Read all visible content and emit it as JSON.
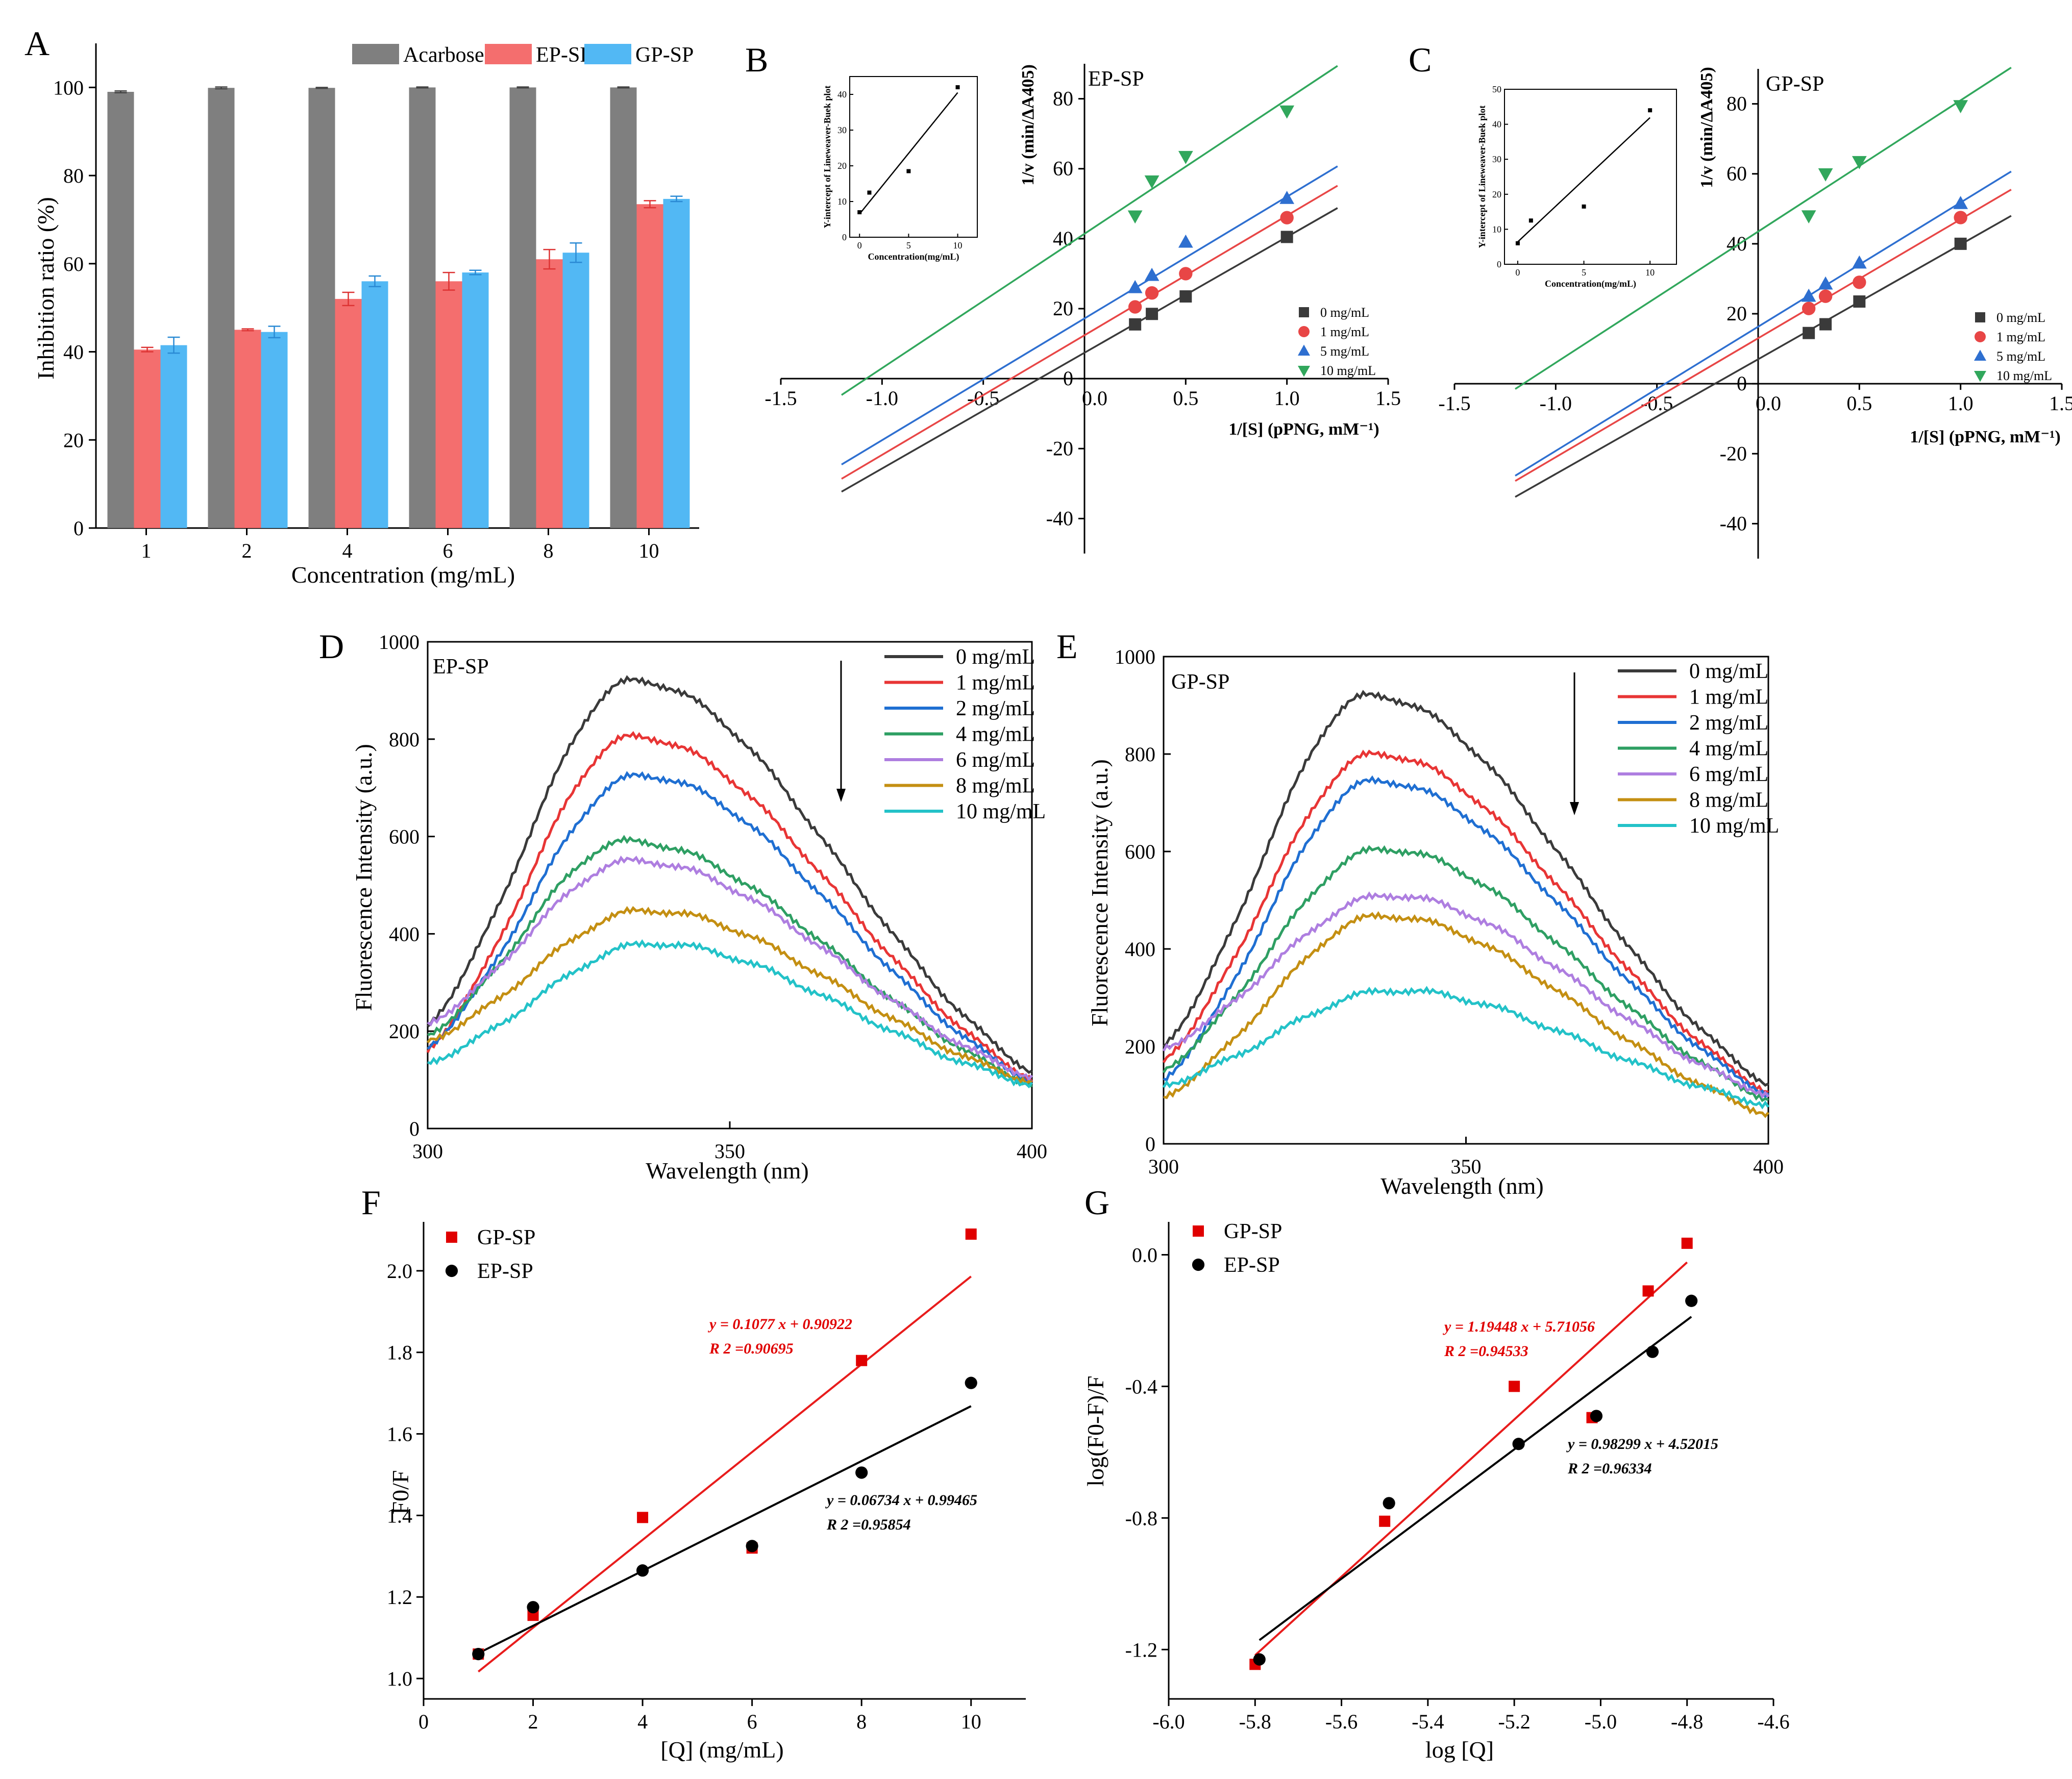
{
  "colors": {
    "acarbose": "#7f7f7f",
    "ep_sp": "#f46e6e",
    "gp_sp": "#52b8f4",
    "lb_0": "#3a3a3a",
    "lb_1": "#e84646",
    "lb_5": "#2e6fd0",
    "lb_10": "#31a75c",
    "fl": [
      "#3a3a3a",
      "#e83535",
      "#1f6fd2",
      "#2e9f63",
      "#ae7ee0",
      "#c48f12",
      "#23c2c8"
    ],
    "fit_gp": "#e81c1c",
    "fit_ep": "#000000"
  },
  "panels": {
    "A": {
      "letter": "A",
      "xlabel": "Concentration (mg/mL)",
      "ylabel": "Inhibition ratio (%)",
      "legend": [
        "Acarbose",
        "EP-SP",
        "GP-SP"
      ]
    },
    "B": {
      "letter": "B",
      "label": "EP-SP",
      "xlabel": "1/[S] (pPNG, mM⁻¹)",
      "ylabel": "1/v (min/ΔA405)",
      "legend": [
        "0 mg/mL",
        "1 mg/mL",
        "5 mg/mL",
        "10 mg/mL"
      ],
      "inset_ylabel": "Y-intercept of Lineweaver-Buek plot",
      "inset_xlabel": "Concentration(mg/mL)"
    },
    "C": {
      "letter": "C",
      "label": "GP-SP",
      "xlabel": "1/[S] (pPNG, mM⁻¹)",
      "ylabel": "1/v (min/ΔA405)",
      "legend": [
        "0 mg/mL",
        "1 mg/mL",
        "5 mg/mL",
        "10 mg/mL"
      ],
      "inset_ylabel": "Y-intercept of Lineweaver-Buek plot",
      "inset_xlabel": "Concentration(mg/mL)"
    },
    "D": {
      "letter": "D",
      "label": "EP-SP",
      "xlabel": "Wavelength (nm)",
      "ylabel": "Fluorescence Intensity (a.u.)",
      "legend": [
        "0 mg/mL",
        "1 mg/mL",
        "2 mg/mL",
        "4 mg/mL",
        "6 mg/mL",
        "8 mg/mL",
        "10 mg/mL"
      ]
    },
    "E": {
      "letter": "E",
      "label": "GP-SP",
      "xlabel": "Wavelength (nm)",
      "ylabel": "Fluorescence Intensity (a.u.)",
      "legend": [
        "0 mg/mL",
        "1 mg/mL",
        "2 mg/mL",
        "4 mg/mL",
        "6 mg/mL",
        "8 mg/mL",
        "10 mg/mL"
      ]
    },
    "F": {
      "letter": "F",
      "xlabel": "[Q] (mg/mL)",
      "ylabel": "F0/F",
      "legend": [
        "GP-SP",
        "EP-SP"
      ],
      "eq_gp": "y = 0.1077 x + 0.90922",
      "r2_gp": "R 2 =0.90695",
      "eq_ep": "y = 0.06734 x + 0.99465",
      "r2_ep": "R 2 =0.95854"
    },
    "G": {
      "letter": "G",
      "xlabel": "log [Q]",
      "ylabel": "log(F0-F)/F",
      "legend": [
        "GP-SP",
        "EP-SP"
      ],
      "eq_gp": "y = 1.19448 x + 5.71056",
      "r2_gp": "R 2 =0.94533",
      "eq_ep": "y = 0.98299 x + 4.52015",
      "r2_ep": "R 2 =0.96334"
    }
  },
  "chart_data": [
    {
      "panel": "A",
      "type": "bar",
      "categories": [
        "1",
        "2",
        "4",
        "6",
        "8",
        "10"
      ],
      "series": [
        {
          "name": "Acarbose",
          "values": [
            99.0,
            99.9,
            99.9,
            100.0,
            100.0,
            100.0
          ],
          "errors": [
            0.2,
            0.2,
            0.1,
            0.1,
            0.1,
            0.1
          ]
        },
        {
          "name": "EP-SP",
          "values": [
            40.5,
            45.0,
            52.0,
            56.0,
            61.0,
            73.5
          ],
          "errors": [
            0.5,
            0.2,
            1.5,
            2.0,
            2.2,
            0.8
          ]
        },
        {
          "name": "GP-SP",
          "values": [
            41.5,
            44.5,
            56.0,
            58.0,
            62.5,
            74.7
          ],
          "errors": [
            1.8,
            1.3,
            1.2,
            0.5,
            2.2,
            0.6
          ]
        }
      ],
      "xlabel": "Concentration (mg/mL)",
      "ylabel": "Inhibition ratio (%)",
      "ylim": [
        0,
        110
      ],
      "yticks": [
        0,
        20,
        40,
        60,
        80,
        100
      ],
      "legend_position": "top-right"
    },
    {
      "panel": "B",
      "type": "scatter",
      "label": "EP-SP",
      "xlim": [
        -1.5,
        1.5
      ],
      "ylim": [
        -50,
        90
      ],
      "xticks": [
        -1.5,
        -1.0,
        -0.5,
        0.0,
        0.5,
        1.0,
        1.5
      ],
      "yticks": [
        -40,
        -20,
        0,
        20,
        40,
        60,
        80
      ],
      "series": [
        {
          "name": "0 mg/mL",
          "marker": "square",
          "x": [
            0.25,
            0.333,
            0.5,
            1.0
          ],
          "y": [
            15.5,
            18.5,
            23.5,
            40.5
          ],
          "fit": {
            "slope": 33.1,
            "intercept": 7.4,
            "x_range": [
              -1.2,
              1.25
            ]
          }
        },
        {
          "name": "1 mg/mL",
          "marker": "circle",
          "x": [
            0.25,
            0.333,
            0.5,
            1.0
          ],
          "y": [
            20.5,
            24.5,
            30.0,
            46.0
          ],
          "fit": {
            "slope": 34.2,
            "intercept": 12.4,
            "x_range": [
              -1.2,
              1.25
            ]
          }
        },
        {
          "name": "5 mg/mL",
          "marker": "triangle-up",
          "x": [
            0.25,
            0.333,
            0.5,
            1.0
          ],
          "y": [
            26.0,
            29.5,
            39.0,
            51.5
          ],
          "fit": {
            "slope": 34.8,
            "intercept": 17.2,
            "x_range": [
              -1.2,
              1.25
            ]
          }
        },
        {
          "name": "10 mg/mL",
          "marker": "triangle-down",
          "x": [
            0.25,
            0.333,
            0.5,
            1.0
          ],
          "y": [
            46.5,
            56.5,
            63.5,
            76.5
          ],
          "fit": {
            "slope": 38.4,
            "intercept": 41.4,
            "x_range": [
              -1.2,
              1.25
            ]
          }
        }
      ],
      "inset": {
        "xlim": [
          -1,
          12
        ],
        "ylim": [
          0,
          45
        ],
        "xticks": [
          0,
          5,
          10
        ],
        "yticks": [
          0,
          10,
          20,
          30,
          40
        ],
        "x": [
          0,
          1,
          5,
          10
        ],
        "y": [
          7,
          12.5,
          18.5,
          42
        ],
        "fit": {
          "slope": 3.4,
          "intercept": 6.5
        }
      }
    },
    {
      "panel": "C",
      "type": "scatter",
      "label": "GP-SP",
      "xlim": [
        -1.5,
        1.5
      ],
      "ylim": [
        -50,
        90
      ],
      "xticks": [
        -1.5,
        -1.0,
        -0.5,
        0.0,
        0.5,
        1.0,
        1.5
      ],
      "yticks": [
        -40,
        -20,
        0,
        20,
        40,
        60,
        80
      ],
      "series": [
        {
          "name": "0 mg/mL",
          "marker": "square",
          "x": [
            0.25,
            0.333,
            0.5,
            1.0
          ],
          "y": [
            14.5,
            17.0,
            23.5,
            40.0
          ],
          "fit": {
            "slope": 32.8,
            "intercept": 7.0,
            "x_range": [
              -1.2,
              1.25
            ]
          }
        },
        {
          "name": "1 mg/mL",
          "marker": "circle",
          "x": [
            0.25,
            0.333,
            0.5,
            1.0
          ],
          "y": [
            21.5,
            25.0,
            29.0,
            47.5
          ],
          "fit": {
            "slope": 34.0,
            "intercept": 13.0,
            "x_range": [
              -1.2,
              1.25
            ]
          }
        },
        {
          "name": "5 mg/mL",
          "marker": "triangle-up",
          "x": [
            0.25,
            0.333,
            0.5,
            1.0
          ],
          "y": [
            25.0,
            28.5,
            34.5,
            51.5
          ],
          "fit": {
            "slope": 35.5,
            "intercept": 16.3,
            "x_range": [
              -1.2,
              1.25
            ]
          }
        },
        {
          "name": "10 mg/mL",
          "marker": "triangle-down",
          "x": [
            0.25,
            0.333,
            0.5,
            1.0
          ],
          "y": [
            48.0,
            60.0,
            63.5,
            79.5
          ],
          "fit": {
            "slope": 37.5,
            "intercept": 43.5,
            "x_range": [
              -1.2,
              1.25
            ]
          }
        }
      ],
      "inset": {
        "xlim": [
          -1,
          12
        ],
        "ylim": [
          0,
          50
        ],
        "xticks": [
          0,
          5,
          10
        ],
        "yticks": [
          0,
          10,
          20,
          30,
          40,
          50
        ],
        "x": [
          0,
          1,
          5,
          10
        ],
        "y": [
          6,
          12.5,
          16.5,
          44
        ],
        "fit": {
          "slope": 3.55,
          "intercept": 6.4
        }
      }
    },
    {
      "panel": "D",
      "type": "line",
      "label": "EP-SP",
      "xlim": [
        300,
        400
      ],
      "ylim": [
        0,
        1000
      ],
      "xticks": [
        300,
        350,
        400
      ],
      "yticks": [
        0,
        200,
        400,
        600,
        800,
        1000
      ],
      "series": [
        {
          "name": "0 mg/mL",
          "peak_x": 334,
          "peak_y": 920,
          "start_y": 210,
          "end_y": 115
        },
        {
          "name": "1 mg/mL",
          "peak_x": 334,
          "peak_y": 805,
          "start_y": 160,
          "end_y": 100
        },
        {
          "name": "2 mg/mL",
          "peak_x": 335,
          "peak_y": 725,
          "start_y": 165,
          "end_y": 95
        },
        {
          "name": "4 mg/mL",
          "peak_x": 333,
          "peak_y": 590,
          "start_y": 190,
          "end_y": 90
        },
        {
          "name": "6 mg/mL",
          "peak_x": 334,
          "peak_y": 550,
          "start_y": 215,
          "end_y": 105
        },
        {
          "name": "8 mg/mL",
          "peak_x": 336,
          "peak_y": 448,
          "start_y": 180,
          "end_y": 95
        },
        {
          "name": "10 mg/mL",
          "peak_x": 337,
          "peak_y": 380,
          "start_y": 135,
          "end_y": 90
        }
      ]
    },
    {
      "panel": "E",
      "type": "line",
      "label": "GP-SP",
      "xlim": [
        300,
        400
      ],
      "ylim": [
        0,
        1000
      ],
      "xticks": [
        300,
        350,
        400
      ],
      "yticks": [
        0,
        200,
        400,
        600,
        800,
        1000
      ],
      "series": [
        {
          "name": "0 mg/mL",
          "peak_x": 334,
          "peak_y": 920,
          "start_y": 200,
          "end_y": 120
        },
        {
          "name": "1 mg/mL",
          "peak_x": 335,
          "peak_y": 800,
          "start_y": 170,
          "end_y": 105
        },
        {
          "name": "2 mg/mL",
          "peak_x": 335,
          "peak_y": 745,
          "start_y": 130,
          "end_y": 100
        },
        {
          "name": "4 mg/mL",
          "peak_x": 336,
          "peak_y": 605,
          "start_y": 150,
          "end_y": 90
        },
        {
          "name": "6 mg/mL",
          "peak_x": 337,
          "peak_y": 510,
          "start_y": 195,
          "end_y": 100
        },
        {
          "name": "8 mg/mL",
          "peak_x": 336,
          "peak_y": 468,
          "start_y": 95,
          "end_y": 60
        },
        {
          "name": "10 mg/mL",
          "peak_x": 338,
          "peak_y": 315,
          "start_y": 120,
          "end_y": 80
        }
      ]
    },
    {
      "panel": "F",
      "type": "scatter",
      "xlim": [
        0,
        11
      ],
      "ylim": [
        0.95,
        2.12
      ],
      "xticks": [
        0,
        2,
        4,
        6,
        8,
        10
      ],
      "yticks": [
        1.0,
        1.2,
        1.4,
        1.6,
        1.8,
        2.0
      ],
      "series": [
        {
          "name": "GP-SP",
          "marker": "square",
          "x": [
            1,
            2,
            4,
            6,
            8,
            10
          ],
          "y": [
            1.06,
            1.155,
            1.395,
            1.32,
            1.78,
            2.09
          ],
          "fit": {
            "slope": 0.1077,
            "intercept": 0.90922
          }
        },
        {
          "name": "EP-SP",
          "marker": "circle",
          "x": [
            1,
            2,
            4,
            6,
            8,
            10
          ],
          "y": [
            1.06,
            1.175,
            1.265,
            1.325,
            1.505,
            1.725
          ],
          "fit": {
            "slope": 0.06734,
            "intercept": 0.99465
          }
        }
      ]
    },
    {
      "panel": "G",
      "type": "scatter",
      "xlim": [
        -6.0,
        -4.6
      ],
      "ylim": [
        -1.35,
        0.1
      ],
      "xticks": [
        -6.0,
        -5.8,
        -5.6,
        -5.4,
        -5.2,
        -5.0,
        -4.8,
        -4.6
      ],
      "yticks": [
        -1.2,
        -0.8,
        -0.4,
        0.0
      ],
      "series": [
        {
          "name": "GP-SP",
          "marker": "square",
          "x": [
            -5.8,
            -5.5,
            -5.2,
            -5.02,
            -4.89,
            -4.8
          ],
          "y": [
            -1.245,
            -0.81,
            -0.4,
            -0.495,
            -0.11,
            0.035
          ],
          "fit": {
            "slope": 1.19448,
            "intercept": 5.71056,
            "x_range": [
              -5.8,
              -4.8
            ]
          }
        },
        {
          "name": "EP-SP",
          "marker": "circle",
          "x": [
            -5.79,
            -5.49,
            -5.19,
            -5.01,
            -4.88,
            -4.79
          ],
          "y": [
            -1.23,
            -0.755,
            -0.575,
            -0.49,
            -0.295,
            -0.14
          ],
          "fit": {
            "slope": 0.98299,
            "intercept": 4.52015,
            "x_range": [
              -5.79,
              -4.79
            ]
          }
        }
      ]
    }
  ]
}
